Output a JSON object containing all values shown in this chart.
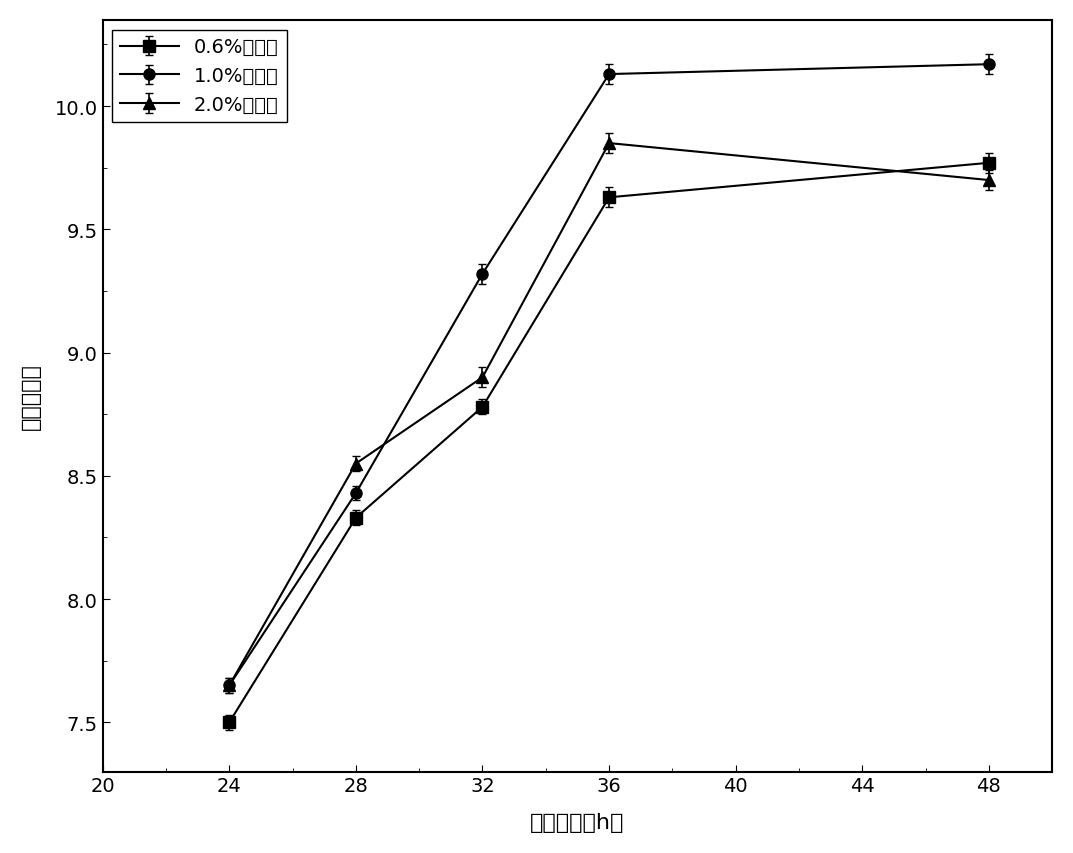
{
  "x": [
    24,
    28,
    32,
    36,
    48
  ],
  "series": [
    {
      "label": "0.6%接种量",
      "y": [
        7.5,
        8.33,
        8.78,
        9.63,
        9.77
      ],
      "yerr": [
        0.03,
        0.03,
        0.03,
        0.04,
        0.04
      ],
      "marker": "s",
      "color": "#000000"
    },
    {
      "label": "1.0%接种量",
      "y": [
        7.65,
        8.43,
        9.32,
        10.13,
        10.17
      ],
      "yerr": [
        0.03,
        0.03,
        0.04,
        0.04,
        0.04
      ],
      "marker": "o",
      "color": "#000000"
    },
    {
      "label": "2.0%接种量",
      "y": [
        7.65,
        8.55,
        8.9,
        9.85,
        9.7
      ],
      "yerr": [
        0.03,
        0.03,
        0.04,
        0.04,
        0.04
      ],
      "marker": "^",
      "color": "#000000"
    }
  ],
  "xlabel": "发酵时间（h）",
  "ylabel": "活菌数对数",
  "xlim": [
    20,
    50
  ],
  "ylim": [
    7.3,
    10.35
  ],
  "xticks": [
    20,
    24,
    28,
    32,
    36,
    40,
    44,
    48
  ],
  "yticks": [
    7.5,
    8.0,
    8.5,
    9.0,
    9.5,
    10.0
  ],
  "background_color": "#ffffff",
  "linewidth": 1.5,
  "markersize": 8,
  "legend_loc": "upper left",
  "legend_fontsize": 14,
  "tick_fontsize": 14,
  "label_fontsize": 16
}
